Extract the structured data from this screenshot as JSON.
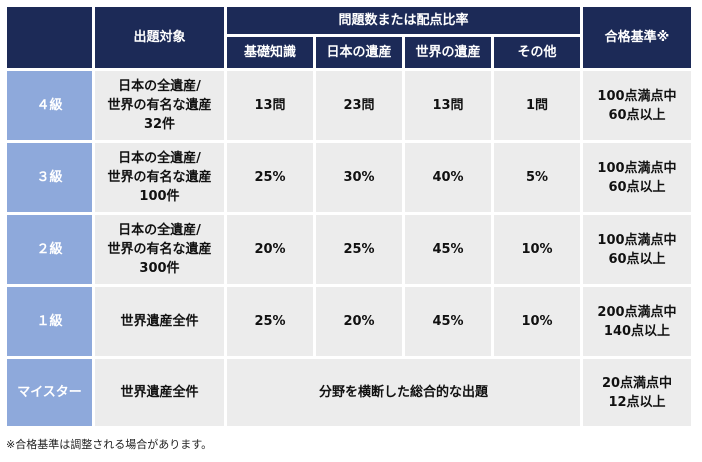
{
  "header": {
    "target": "出題対象",
    "ratio": "問題数または配点比率",
    "pass": "合格基準※",
    "sub": [
      "基礎知識",
      "日本の遺産",
      "世界の遺産",
      "その他"
    ]
  },
  "rows": [
    {
      "level": "４級",
      "target": [
        "日本の全遺産/",
        "世界の有名な遺産",
        "32件"
      ],
      "values": [
        "13問",
        "23問",
        "13問",
        "1問"
      ],
      "pass": [
        "100点満点中",
        "60点以上"
      ]
    },
    {
      "level": "３級",
      "target": [
        "日本の全遺産/",
        "世界の有名な遺産",
        "100件"
      ],
      "values": [
        "25%",
        "30%",
        "40%",
        "5%"
      ],
      "pass": [
        "100点満点中",
        "60点以上"
      ]
    },
    {
      "level": "２級",
      "target": [
        "日本の全遺産/",
        "世界の有名な遺産",
        "300件"
      ],
      "values": [
        "20%",
        "25%",
        "45%",
        "10%"
      ],
      "pass": [
        "100点満点中",
        "60点以上"
      ]
    },
    {
      "level": "１級",
      "target": [
        "世界遺産全件"
      ],
      "values": [
        "25%",
        "20%",
        "45%",
        "10%"
      ],
      "pass": [
        "200点満点中",
        "140点以上"
      ]
    }
  ],
  "meister": {
    "level": "マイスター",
    "target": "世界遺産全件",
    "description": "分野を横断した総合的な出題",
    "pass": [
      "20点満点中",
      "12点以上"
    ]
  },
  "footnote": "※合格基準は調整される場合があります。",
  "colors": {
    "header_bg": "#1c2a57",
    "level_bg": "#8ea9db",
    "cell_bg": "#ececec"
  }
}
